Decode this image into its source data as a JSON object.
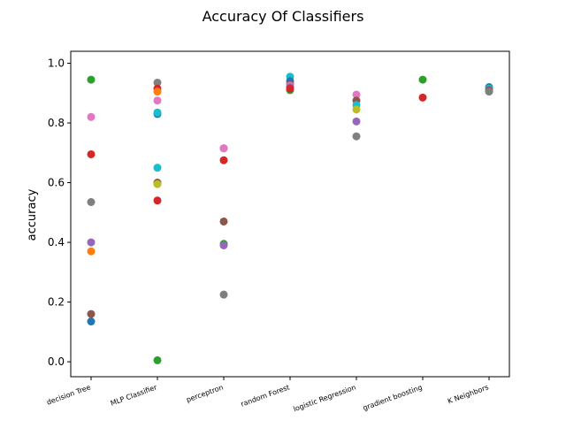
{
  "chart_data": {
    "type": "scatter",
    "title": "Accuracy Of Classifiers",
    "xlabel": "",
    "ylabel": "accuracy",
    "categories": [
      "decision Tree",
      "MLP Classifier",
      "perceptron",
      "random Forest",
      "logistic Regression",
      "gradient boosting",
      "K Neighbors"
    ],
    "ylim": [
      -0.05,
      1.04
    ],
    "yticks": [
      0.0,
      0.2,
      0.4,
      0.6,
      0.8,
      1.0
    ],
    "ytick_labels": [
      "0.0",
      "0.2",
      "0.4",
      "0.6",
      "0.8",
      "1.0"
    ],
    "grid": false,
    "legend": "none",
    "points": [
      {
        "category": "decision Tree",
        "value": 0.945,
        "color": "#2ca02c"
      },
      {
        "category": "decision Tree",
        "value": 0.82,
        "color": "#e377c2"
      },
      {
        "category": "decision Tree",
        "value": 0.695,
        "color": "#d62728"
      },
      {
        "category": "decision Tree",
        "value": 0.535,
        "color": "#7f7f7f"
      },
      {
        "category": "decision Tree",
        "value": 0.4,
        "color": "#9467bd"
      },
      {
        "category": "decision Tree",
        "value": 0.37,
        "color": "#ff7f0e"
      },
      {
        "category": "decision Tree",
        "value": 0.16,
        "color": "#8c564b"
      },
      {
        "category": "decision Tree",
        "value": 0.135,
        "color": "#1f77b4"
      },
      {
        "category": "MLP Classifier",
        "value": 0.935,
        "color": "#7f7f7f"
      },
      {
        "category": "MLP Classifier",
        "value": 0.915,
        "color": "#d62728"
      },
      {
        "category": "MLP Classifier",
        "value": 0.905,
        "color": "#ff7f0e"
      },
      {
        "category": "MLP Classifier",
        "value": 0.875,
        "color": "#e377c2"
      },
      {
        "category": "MLP Classifier",
        "value": 0.83,
        "color": "#1f77b4"
      },
      {
        "category": "MLP Classifier",
        "value": 0.835,
        "color": "#17becf"
      },
      {
        "category": "MLP Classifier",
        "value": 0.65,
        "color": "#17becf"
      },
      {
        "category": "MLP Classifier",
        "value": 0.6,
        "color": "#8c564b"
      },
      {
        "category": "MLP Classifier",
        "value": 0.595,
        "color": "#bcbd22"
      },
      {
        "category": "MLP Classifier",
        "value": 0.54,
        "color": "#d62728"
      },
      {
        "category": "MLP Classifier",
        "value": 0.005,
        "color": "#2ca02c"
      },
      {
        "category": "perceptron",
        "value": 0.715,
        "color": "#9467bd"
      },
      {
        "category": "perceptron",
        "value": 0.715,
        "color": "#e377c2"
      },
      {
        "category": "perceptron",
        "value": 0.675,
        "color": "#d62728"
      },
      {
        "category": "perceptron",
        "value": 0.47,
        "color": "#8c564b"
      },
      {
        "category": "perceptron",
        "value": 0.395,
        "color": "#2ca02c"
      },
      {
        "category": "perceptron",
        "value": 0.39,
        "color": "#9467bd"
      },
      {
        "category": "perceptron",
        "value": 0.225,
        "color": "#7f7f7f"
      },
      {
        "category": "random Forest",
        "value": 0.955,
        "color": "#17becf"
      },
      {
        "category": "random Forest",
        "value": 0.94,
        "color": "#1f77b4"
      },
      {
        "category": "random Forest",
        "value": 0.93,
        "color": "#8c564b"
      },
      {
        "category": "random Forest",
        "value": 0.925,
        "color": "#e377c2"
      },
      {
        "category": "random Forest",
        "value": 0.92,
        "color": "#9467bd"
      },
      {
        "category": "random Forest",
        "value": 0.91,
        "color": "#2ca02c"
      },
      {
        "category": "random Forest",
        "value": 0.915,
        "color": "#d62728"
      },
      {
        "category": "logistic Regression",
        "value": 0.895,
        "color": "#e377c2"
      },
      {
        "category": "logistic Regression",
        "value": 0.875,
        "color": "#8c564b"
      },
      {
        "category": "logistic Regression",
        "value": 0.86,
        "color": "#17becf"
      },
      {
        "category": "logistic Regression",
        "value": 0.845,
        "color": "#bcbd22"
      },
      {
        "category": "logistic Regression",
        "value": 0.805,
        "color": "#9467bd"
      },
      {
        "category": "logistic Regression",
        "value": 0.755,
        "color": "#7f7f7f"
      },
      {
        "category": "gradient boosting",
        "value": 0.945,
        "color": "#2ca02c"
      },
      {
        "category": "gradient boosting",
        "value": 0.885,
        "color": "#d62728"
      },
      {
        "category": "K Neighbors",
        "value": 0.92,
        "color": "#1f77b4"
      },
      {
        "category": "K Neighbors",
        "value": 0.915,
        "color": "#17becf"
      },
      {
        "category": "K Neighbors",
        "value": 0.91,
        "color": "#8c564b"
      },
      {
        "category": "K Neighbors",
        "value": 0.905,
        "color": "#7f7f7f"
      }
    ]
  }
}
